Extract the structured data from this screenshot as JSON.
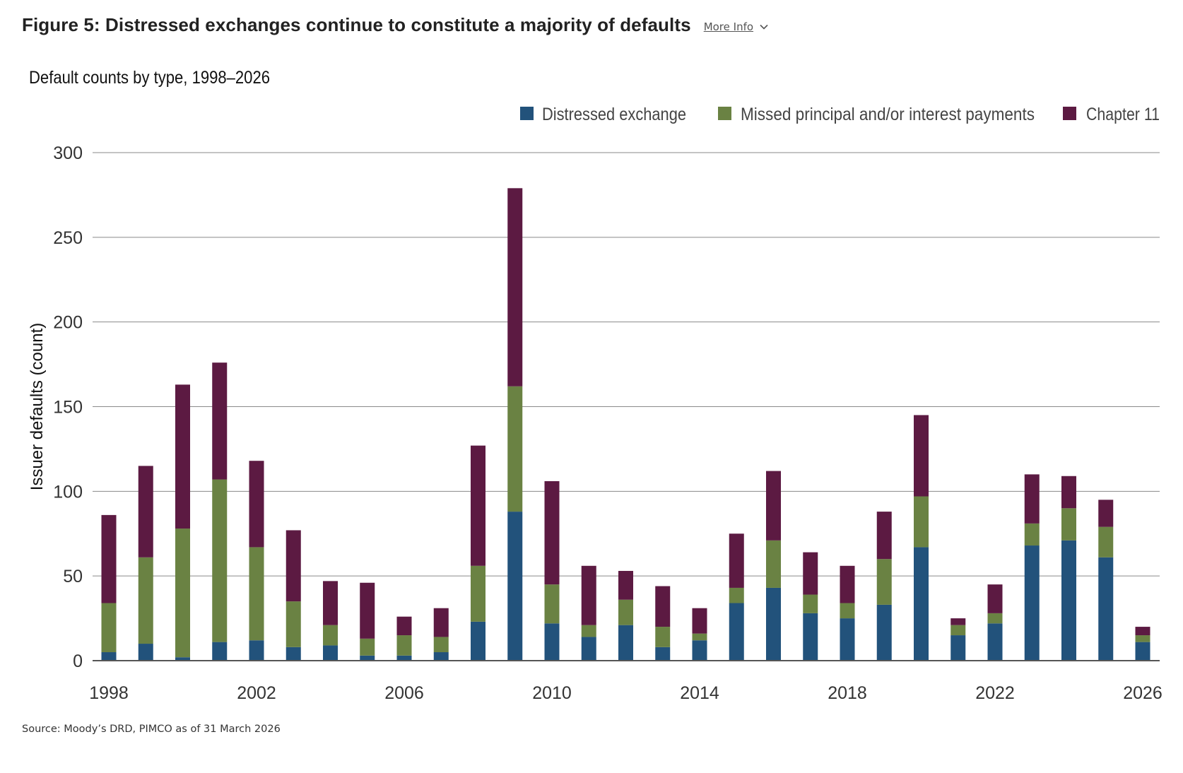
{
  "header": {
    "title": "Figure 5: Distressed exchanges continue to constitute a majority of defaults",
    "more_info_label": "More Info",
    "more_info_icon": "chevron-down-icon"
  },
  "source": "Source: Moody’s DRD, PIMCO as of 31 March 2026",
  "chart_data": {
    "type": "bar",
    "stacked": true,
    "title": "Default counts by type, 1998–2026",
    "xlabel": "",
    "ylabel": "Issuer defaults (count)",
    "ylim": [
      0,
      300
    ],
    "yticks": [
      0,
      50,
      100,
      150,
      200,
      250,
      300
    ],
    "xtick_labels": [
      "1998",
      "2002",
      "2006",
      "2010",
      "2014",
      "2018",
      "2022",
      "2026"
    ],
    "grid": true,
    "legend_position": "top-right",
    "categories": [
      "1998",
      "1999",
      "2000",
      "2001",
      "2002",
      "2003",
      "2004",
      "2005",
      "2006",
      "2007",
      "2008",
      "2009",
      "2010",
      "2011",
      "2012",
      "2013",
      "2014",
      "2015",
      "2016",
      "2017",
      "2018",
      "2019",
      "2020",
      "2021",
      "2022",
      "2023",
      "2024",
      "2025",
      "2026"
    ],
    "series": [
      {
        "name": "Distressed exchange",
        "color": "#22527b",
        "values": [
          5,
          10,
          2,
          11,
          12,
          8,
          9,
          3,
          3,
          5,
          23,
          88,
          22,
          14,
          21,
          8,
          12,
          34,
          43,
          28,
          25,
          33,
          67,
          15,
          22,
          68,
          71,
          61,
          11
        ]
      },
      {
        "name": "Missed principal and/or interest payments",
        "color": "#6a8243",
        "values": [
          29,
          51,
          76,
          96,
          55,
          27,
          12,
          10,
          12,
          9,
          33,
          74,
          23,
          7,
          15,
          12,
          4,
          9,
          28,
          11,
          9,
          27,
          30,
          6,
          6,
          13,
          19,
          18,
          4
        ]
      },
      {
        "name": "Chapter 11",
        "color": "#5c1a42",
        "values": [
          52,
          54,
          85,
          69,
          51,
          42,
          26,
          33,
          11,
          17,
          71,
          117,
          61,
          35,
          17,
          24,
          15,
          32,
          41,
          25,
          22,
          28,
          48,
          4,
          17,
          29,
          19,
          16,
          5
        ]
      }
    ]
  }
}
